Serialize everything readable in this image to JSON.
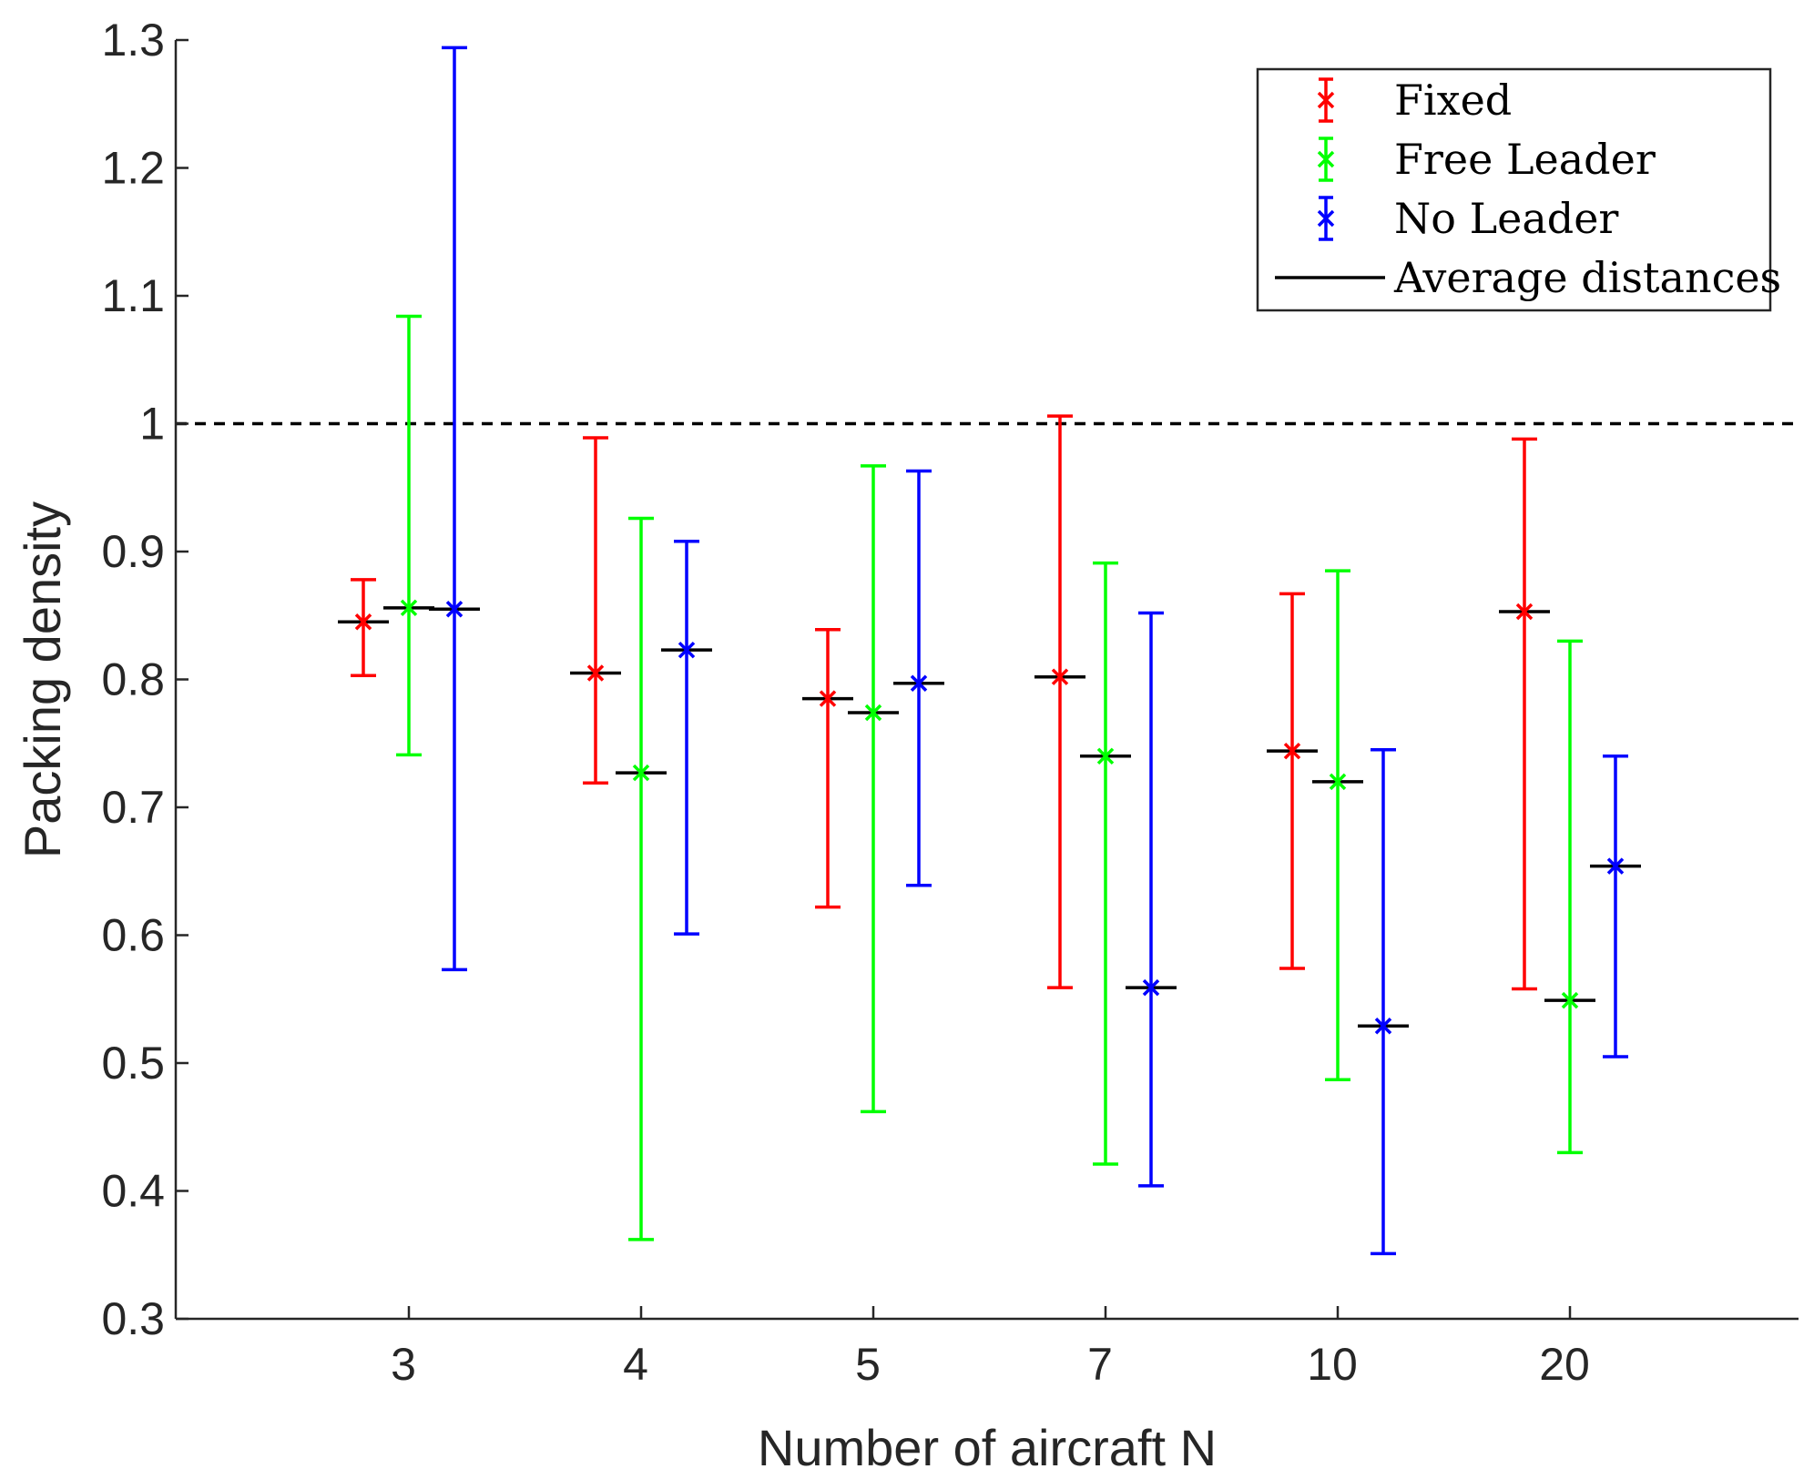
{
  "chart_data": {
    "type": "errorbar",
    "title": "",
    "xlabel": "Number of aircraft N",
    "ylabel": "Packing density",
    "categories": [
      "3",
      "4",
      "5",
      "7",
      "10",
      "20"
    ],
    "ylim": [
      0.3,
      1.3
    ],
    "yticks": [
      "0.3",
      "0.4",
      "0.5",
      "0.6",
      "0.7",
      "0.8",
      "0.9",
      "1",
      "1.1",
      "1.2",
      "1.3"
    ],
    "reference_line": {
      "value": 1.0,
      "style": "dashed",
      "color": "#000000"
    },
    "legend_position": "top-right",
    "series": [
      {
        "name": "Fixed",
        "color": "#ff0000",
        "center": [
          0.845,
          0.805,
          0.785,
          0.802,
          0.744,
          0.853
        ],
        "lower": [
          0.803,
          0.719,
          0.622,
          0.559,
          0.574,
          0.558
        ],
        "upper": [
          0.878,
          0.989,
          0.839,
          1.006,
          0.867,
          0.988
        ]
      },
      {
        "name": "Free Leader",
        "color": "#00ff00",
        "center": [
          0.856,
          0.727,
          0.774,
          0.74,
          0.72,
          0.549
        ],
        "lower": [
          0.741,
          0.362,
          0.462,
          0.421,
          0.487,
          0.43
        ],
        "upper": [
          1.084,
          0.926,
          0.967,
          0.891,
          0.885,
          0.83
        ]
      },
      {
        "name": "No Leader",
        "color": "#0000ff",
        "center": [
          0.855,
          0.823,
          0.797,
          0.559,
          0.529,
          0.654
        ],
        "lower": [
          0.573,
          0.601,
          0.639,
          0.404,
          0.351,
          0.505
        ],
        "upper": [
          1.294,
          0.908,
          0.963,
          0.852,
          0.745,
          0.74
        ]
      }
    ],
    "average_distances": {
      "name": "Average distances",
      "color": "#000000",
      "values": [
        [
          0.845,
          0.856,
          0.855
        ],
        [
          0.805,
          0.727,
          0.823
        ],
        [
          0.785,
          0.774,
          0.797
        ],
        [
          0.802,
          0.74,
          0.559
        ],
        [
          0.744,
          0.72,
          0.529
        ],
        [
          0.853,
          0.549,
          0.654
        ]
      ]
    },
    "legend": [
      "Fixed",
      "Free Leader",
      "No Leader",
      "Average distances"
    ]
  }
}
